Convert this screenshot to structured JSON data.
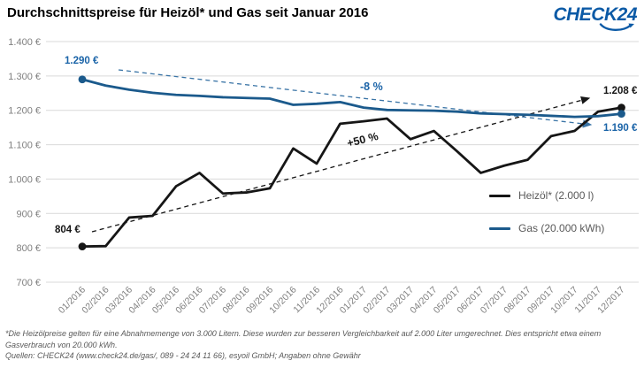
{
  "header": {
    "title": "Durchschnittspreise für Heizöl* und Gas seit Januar 2016",
    "logo_text": "CHECK24",
    "logo_color": "#0c5aa6"
  },
  "chart_data": {
    "type": "line",
    "title": "Durchschnittspreise für Heizöl* und Gas seit Januar 2016",
    "x": [
      "01/2016",
      "02/2016",
      "03/2016",
      "04/2016",
      "05/2016",
      "06/2016",
      "07/2016",
      "08/2016",
      "09/2016",
      "10/2016",
      "11/2016",
      "12/2016",
      "01/2017",
      "02/2017",
      "03/2017",
      "04/2017",
      "05/2017",
      "06/2017",
      "07/2017",
      "08/2017",
      "09/2017",
      "10/2017",
      "11/2017",
      "12/2017"
    ],
    "series": [
      {
        "name": "Heizöl* (2.000 l)",
        "color": "#161616",
        "values": [
          804,
          805,
          888,
          893,
          979,
          1018,
          958,
          961,
          973,
          1089,
          1045,
          1161,
          1168,
          1176,
          1116,
          1140,
          1080,
          1018,
          1039,
          1056,
          1125,
          1140,
          1196,
          1208
        ]
      },
      {
        "name": "Gas (20.000 kWh)",
        "color": "#1b5a8c",
        "values": [
          1290,
          1272,
          1260,
          1251,
          1245,
          1242,
          1238,
          1236,
          1234,
          1216,
          1219,
          1224,
          1208,
          1201,
          1200,
          1199,
          1196,
          1191,
          1189,
          1187,
          1184,
          1181,
          1183,
          1190
        ]
      }
    ],
    "ylim": [
      700,
      1400
    ],
    "y_ticks": [
      {
        "value": 1400,
        "label": "1.400 €"
      },
      {
        "value": 1300,
        "label": "1.300 €"
      },
      {
        "value": 1200,
        "label": "1.200 €"
      },
      {
        "value": 1100,
        "label": "1.100 €"
      },
      {
        "value": 1000,
        "label": "1.000 €"
      },
      {
        "value": 900,
        "label": "900 €"
      },
      {
        "value": 800,
        "label": "800 €"
      },
      {
        "value": 700,
        "label": "700 €"
      }
    ],
    "grid": true,
    "legend_position": "inside-right",
    "axis_label_color": "#7f7f7f",
    "grid_color": "#d9d9d9",
    "trend_color_gas": "#3a74a6",
    "annotations": {
      "gas_start": "1.290 €",
      "oil_start": "804 €",
      "gas_trend_pct": "-8 %",
      "oil_trend_pct": "+50 %",
      "oil_end": "1.208 €",
      "gas_end": "1.190 €"
    }
  },
  "footnote": {
    "line1": "*Die Heizölpreise gelten für eine Abnahmemenge von 3.000 Litern. Diese wurden zur besseren Vergleichbarkeit auf 2.000 Liter umgerechnet. Dies entspricht etwa einem",
    "line2": "Gasverbrauch von 20.000 kWh.",
    "line3": "Quellen: CHECK24 (www.check24.de/gas/, 089 - 24 24 11 66), esyoil GmbH; Angaben ohne Gewähr"
  }
}
